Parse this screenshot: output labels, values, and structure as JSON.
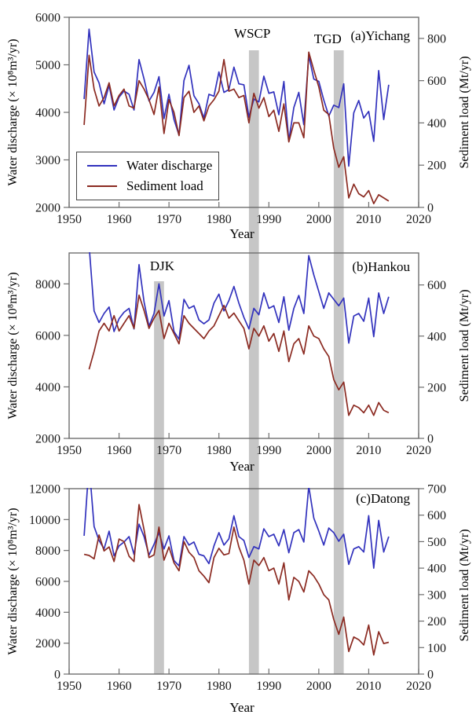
{
  "figure": {
    "colors": {
      "water_discharge": "#3232bd",
      "sediment_load": "#8b2a21",
      "event_bar": "#c6c6c6",
      "axis": "#6e6e6e",
      "text": "#1a1a1a"
    },
    "legend": {
      "items": [
        {
          "label": "Water discharge",
          "color": "#3232bd"
        },
        {
          "label": "Sediment load",
          "color": "#8b2a21"
        }
      ]
    },
    "annotations": [
      {
        "label": "DJK",
        "year": 1968,
        "span_years": [
          1967,
          1969
        ],
        "panels": [
          "b",
          "c"
        ]
      },
      {
        "label": "WSCP",
        "year": 1987,
        "span_years": [
          1986,
          1988
        ],
        "panels": [
          "a",
          "b",
          "c"
        ]
      },
      {
        "label": "TGD",
        "year": 2004,
        "span_years": [
          2003,
          2005
        ],
        "panels": [
          "a",
          "b",
          "c"
        ]
      }
    ]
  },
  "chart_data": [
    {
      "type": "line",
      "title": "(a)Yichang",
      "xlabel": "Year",
      "ylabel_left": "Water discharge (× 10⁸m³/yr)",
      "ylabel_right": "Sediment load (Mt/yr)",
      "xlim": [
        1950,
        2020
      ],
      "x_ticks": [
        1950,
        1960,
        1970,
        1980,
        1990,
        2000,
        2010,
        2020
      ],
      "left_lim": [
        2000,
        6000
      ],
      "left_ticks": [
        2000,
        3000,
        4000,
        5000,
        6000
      ],
      "right_lim": [
        0,
        900
      ],
      "right_ticks": [
        0,
        200,
        400,
        600,
        800
      ],
      "grid": false,
      "legend_position": "lower-left",
      "years": [
        1953,
        1954,
        1955,
        1956,
        1957,
        1958,
        1959,
        1960,
        1961,
        1962,
        1963,
        1964,
        1965,
        1966,
        1967,
        1968,
        1969,
        1970,
        1971,
        1972,
        1973,
        1974,
        1975,
        1976,
        1977,
        1978,
        1979,
        1980,
        1981,
        1982,
        1983,
        1984,
        1985,
        1986,
        1987,
        1988,
        1989,
        1990,
        1991,
        1992,
        1993,
        1994,
        1995,
        1996,
        1997,
        1998,
        1999,
        2000,
        2001,
        2002,
        2003,
        2004,
        2005,
        2006,
        2007,
        2008,
        2009,
        2010,
        2011,
        2012,
        2013,
        2014
      ],
      "series": [
        {
          "name": "Water discharge",
          "axis": "left",
          "color": "#3232bd",
          "values": [
            4280,
            5750,
            4850,
            4620,
            4180,
            4570,
            4050,
            4320,
            4450,
            4380,
            4050,
            5110,
            4700,
            4240,
            4420,
            4750,
            3870,
            4380,
            3850,
            3520,
            4670,
            4990,
            4350,
            4180,
            3880,
            4380,
            4340,
            4850,
            4420,
            4480,
            4950,
            4600,
            4580,
            3900,
            4280,
            4220,
            4760,
            4400,
            4430,
            3950,
            4650,
            3400,
            4100,
            4420,
            3740,
            5200,
            4700,
            4650,
            4260,
            3920,
            4150,
            4100,
            4600,
            2870,
            3990,
            4250,
            3880,
            4020,
            3390,
            4880,
            3850,
            4580
          ]
        },
        {
          "name": "Sediment load",
          "axis": "right",
          "color": "#8b2a21",
          "values": [
            390,
            720,
            560,
            480,
            520,
            590,
            480,
            530,
            560,
            480,
            470,
            600,
            560,
            510,
            440,
            570,
            350,
            510,
            450,
            340,
            520,
            550,
            450,
            480,
            410,
            480,
            510,
            550,
            700,
            550,
            560,
            520,
            530,
            400,
            540,
            470,
            520,
            430,
            460,
            360,
            490,
            310,
            400,
            400,
            330,
            735,
            650,
            570,
            460,
            440,
            280,
            190,
            240,
            45,
            110,
            65,
            50,
            80,
            18,
            60,
            45,
            30
          ]
        }
      ]
    },
    {
      "type": "line",
      "title": "(b)Hankou",
      "xlabel": "Year",
      "ylabel_left": "Water discharge (× 10⁸m³/yr)",
      "ylabel_right": "Sediment load (Mt/yr)",
      "xlim": [
        1950,
        2020
      ],
      "x_ticks": [
        1950,
        1960,
        1970,
        1980,
        1990,
        2000,
        2010,
        2020
      ],
      "left_lim": [
        2000,
        9200
      ],
      "left_ticks": [
        2000,
        4000,
        6000,
        8000
      ],
      "right_lim": [
        0,
        725
      ],
      "right_ticks": [
        0,
        200,
        400,
        600
      ],
      "grid": false,
      "years": [
        1953,
        1954,
        1955,
        1956,
        1957,
        1958,
        1959,
        1960,
        1961,
        1962,
        1963,
        1964,
        1965,
        1966,
        1967,
        1968,
        1969,
        1970,
        1971,
        1972,
        1973,
        1974,
        1975,
        1976,
        1977,
        1978,
        1979,
        1980,
        1981,
        1982,
        1983,
        1984,
        1985,
        1986,
        1987,
        1988,
        1989,
        1990,
        1991,
        1992,
        1993,
        1994,
        1995,
        1996,
        1997,
        1998,
        1999,
        2000,
        2001,
        2002,
        2003,
        2004,
        2005,
        2006,
        2007,
        2008,
        2009,
        2010,
        2011,
        2012,
        2013,
        2014
      ],
      "series": [
        {
          "name": "Water discharge",
          "axis": "left",
          "color": "#3232bd",
          "values": [
            null,
            9500,
            6950,
            6500,
            6850,
            7100,
            6150,
            6650,
            6900,
            7050,
            6250,
            8750,
            7300,
            6350,
            6850,
            8000,
            6750,
            7350,
            6150,
            5850,
            7400,
            7050,
            7150,
            6600,
            6450,
            6600,
            7250,
            7600,
            6950,
            7350,
            7900,
            7250,
            6700,
            6250,
            7050,
            6800,
            7650,
            7050,
            7150,
            6500,
            7500,
            6200,
            7050,
            7550,
            6850,
            9100,
            8350,
            7700,
            7050,
            7650,
            7400,
            7150,
            7450,
            5700,
            6750,
            6850,
            6550,
            7450,
            5950,
            7650,
            6850,
            7500
          ]
        },
        {
          "name": "Sediment load",
          "axis": "right",
          "color": "#8b2a21",
          "values": [
            null,
            270,
            340,
            420,
            450,
            420,
            480,
            420,
            450,
            480,
            430,
            560,
            500,
            430,
            470,
            500,
            390,
            450,
            410,
            370,
            480,
            450,
            430,
            410,
            390,
            420,
            440,
            480,
            520,
            470,
            490,
            460,
            430,
            350,
            430,
            400,
            440,
            380,
            410,
            340,
            420,
            300,
            370,
            390,
            330,
            440,
            400,
            390,
            350,
            320,
            230,
            190,
            220,
            90,
            130,
            120,
            100,
            130,
            90,
            140,
            110,
            100
          ]
        }
      ]
    },
    {
      "type": "line",
      "title": "(c)Datong",
      "xlabel": "Year",
      "ylabel_left": "Water discharge (× 10⁸m³/yr)",
      "ylabel_right": "Sediment load (Mt/yr)",
      "xlim": [
        1950,
        2020
      ],
      "x_ticks": [
        1950,
        1960,
        1970,
        1980,
        1990,
        2000,
        2010,
        2020
      ],
      "left_lim": [
        0,
        12000
      ],
      "left_ticks": [
        0,
        2000,
        4000,
        6000,
        8000,
        10000,
        12000
      ],
      "right_lim": [
        0,
        700
      ],
      "right_ticks": [
        0,
        100,
        200,
        300,
        400,
        500,
        600,
        700
      ],
      "grid": false,
      "years": [
        1953,
        1954,
        1955,
        1956,
        1957,
        1958,
        1959,
        1960,
        1961,
        1962,
        1963,
        1964,
        1965,
        1966,
        1967,
        1968,
        1969,
        1970,
        1971,
        1972,
        1973,
        1974,
        1975,
        1976,
        1977,
        1978,
        1979,
        1980,
        1981,
        1982,
        1983,
        1984,
        1985,
        1986,
        1987,
        1988,
        1989,
        1990,
        1991,
        1992,
        1993,
        1994,
        1995,
        1996,
        1997,
        1998,
        1999,
        2000,
        2001,
        2002,
        2003,
        2004,
        2005,
        2006,
        2007,
        2008,
        2009,
        2010,
        2011,
        2012,
        2013,
        2014
      ],
      "series": [
        {
          "name": "Water discharge",
          "axis": "left",
          "color": "#3232bd",
          "values": [
            8950,
            13600,
            9550,
            8650,
            8100,
            9250,
            7650,
            8300,
            8550,
            8900,
            7750,
            9700,
            8900,
            7700,
            8400,
            9150,
            8100,
            8950,
            7350,
            7000,
            8900,
            8350,
            8550,
            7750,
            7650,
            7150,
            8300,
            9150,
            8350,
            8750,
            10250,
            8900,
            8650,
            7550,
            8250,
            8100,
            9400,
            8900,
            9050,
            8300,
            9350,
            7850,
            9150,
            9350,
            8550,
            12150,
            10100,
            9250,
            8350,
            9450,
            9150,
            8600,
            9050,
            7100,
            8100,
            8250,
            7900,
            10250,
            6860,
            9950,
            7900,
            8900
          ]
        },
        {
          "name": "Sediment load",
          "axis": "right",
          "color": "#8b2a21",
          "values": [
            452,
            448,
            435,
            525,
            465,
            480,
            425,
            510,
            500,
            445,
            425,
            640,
            545,
            440,
            450,
            555,
            430,
            480,
            420,
            390,
            500,
            460,
            440,
            390,
            370,
            345,
            440,
            475,
            450,
            455,
            555,
            480,
            430,
            340,
            430,
            410,
            440,
            390,
            400,
            340,
            420,
            280,
            365,
            350,
            310,
            390,
            370,
            340,
            300,
            280,
            206,
            150,
            215,
            85,
            140,
            130,
            110,
            185,
            72,
            160,
            115,
            120
          ]
        }
      ]
    }
  ]
}
